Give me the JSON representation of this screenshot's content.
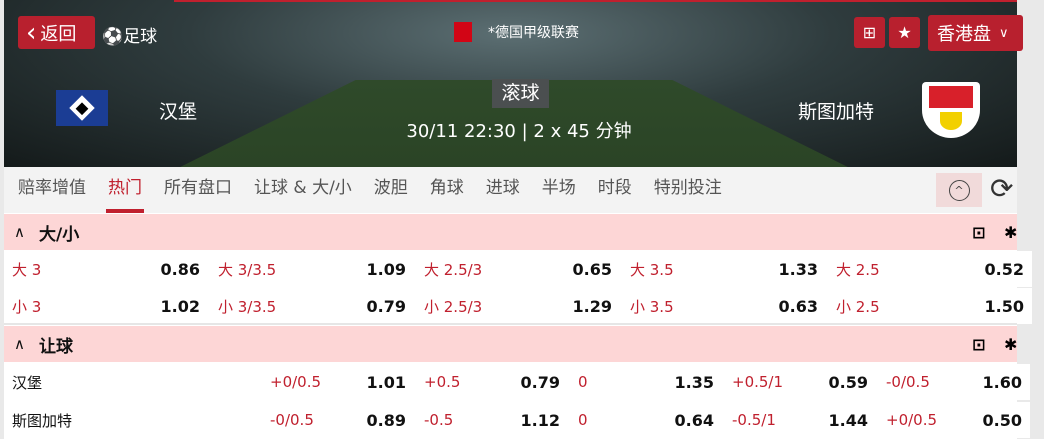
{
  "header": {
    "back_label": "返回",
    "sport": "足球",
    "league": "*德国甲级联赛",
    "odds_format": "香港盘",
    "status": "滚球",
    "datetime": "30/11 22:30",
    "duration": "2 x 45 分钟",
    "home_team": "汉堡",
    "away_team": "斯图加特",
    "icons": [
      "back-chevron",
      "soccer-ball",
      "bundesliga-logo",
      "pitch-icon",
      "star-icon",
      "chevron-down"
    ],
    "accent": "#b8202e"
  },
  "tabs": [
    {
      "label": "赔率增值"
    },
    {
      "label": "热门",
      "active": true
    },
    {
      "label": "所有盘口"
    },
    {
      "label": "让球 & 大/小"
    },
    {
      "label": "波胆"
    },
    {
      "label": "角球"
    },
    {
      "label": "进球"
    },
    {
      "label": "半场"
    },
    {
      "label": "时段"
    },
    {
      "label": "特别投注"
    }
  ],
  "ou": {
    "title": "大/小",
    "rows": [
      [
        {
          "l": "大 3",
          "o": "0.86"
        },
        {
          "l": "大 3/3.5",
          "o": "1.09"
        },
        {
          "l": "大 2.5/3",
          "o": "0.65"
        },
        {
          "l": "大 3.5",
          "o": "1.33"
        },
        {
          "l": "大 2.5",
          "o": "0.52"
        }
      ],
      [
        {
          "l": "小 3",
          "o": "1.02"
        },
        {
          "l": "小 3/3.5",
          "o": "0.79"
        },
        {
          "l": "小 2.5/3",
          "o": "1.29"
        },
        {
          "l": "小 3.5",
          "o": "0.63"
        },
        {
          "l": "小 2.5",
          "o": "1.50"
        }
      ]
    ]
  },
  "hdp": {
    "title": "让球",
    "rows": [
      {
        "team": "汉堡",
        "cells": [
          {
            "l": "+0/0.5",
            "o": "1.01"
          },
          {
            "l": "+0.5",
            "o": "0.79"
          },
          {
            "l": "0",
            "o": "1.35"
          },
          {
            "l": "+0.5/1",
            "o": "0.59"
          },
          {
            "l": "-0/0.5",
            "o": "1.60"
          }
        ]
      },
      {
        "team": "斯图加特",
        "cells": [
          {
            "l": "-0/0.5",
            "o": "0.89"
          },
          {
            "l": "-0.5",
            "o": "1.12"
          },
          {
            "l": "0",
            "o": "0.64"
          },
          {
            "l": "-0.5/1",
            "o": "1.44"
          },
          {
            "l": "+0/0.5",
            "o": "0.50"
          }
        ]
      }
    ]
  }
}
